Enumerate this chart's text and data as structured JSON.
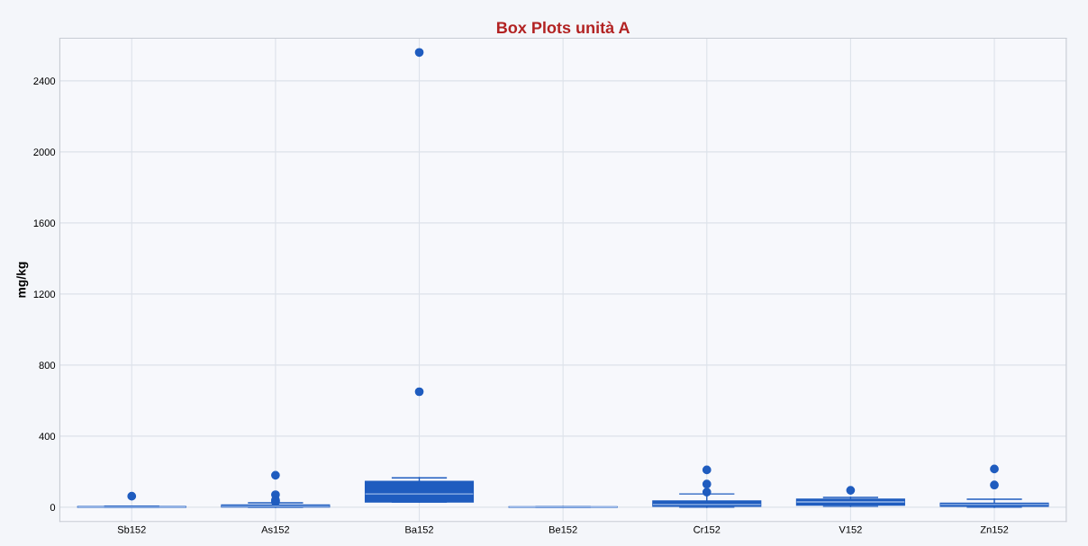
{
  "chart_data": {
    "type": "box",
    "title": "Box Plots unità A",
    "ylabel": "mg/kg",
    "categories": [
      "Sb152",
      "As152",
      "Ba152",
      "Be152",
      "Cr152",
      "V152",
      "Zn152"
    ],
    "color": "#1f5cbf",
    "boxes": [
      {
        "low": 0,
        "q1": 0,
        "median": 1,
        "q3": 4,
        "high": 6,
        "outliers": [
          62
        ]
      },
      {
        "low": 0,
        "q1": 2,
        "median": 5,
        "q3": 12,
        "high": 25,
        "outliers": [
          180,
          70,
          40,
          30
        ]
      },
      {
        "low": 30,
        "q1": 30,
        "median": 75,
        "q3": 145,
        "high": 165,
        "outliers": [
          2560,
          650
        ]
      },
      {
        "low": 0,
        "q1": 0,
        "median": 1,
        "q3": 2,
        "high": 2
      },
      {
        "low": 0,
        "q1": 5,
        "median": 15,
        "q3": 35,
        "high": 75,
        "outliers": [
          210,
          130,
          85
        ]
      },
      {
        "low": 5,
        "q1": 12,
        "median": 30,
        "q3": 45,
        "high": 55,
        "outliers": [
          95
        ]
      },
      {
        "low": 0,
        "q1": 5,
        "median": 15,
        "q3": 22,
        "high": 45,
        "outliers": [
          215,
          125
        ]
      }
    ],
    "ylim": [
      -80,
      2640
    ],
    "yticks": [
      0,
      400,
      800,
      1200,
      1600,
      2000,
      2400
    ],
    "grid": true
  }
}
